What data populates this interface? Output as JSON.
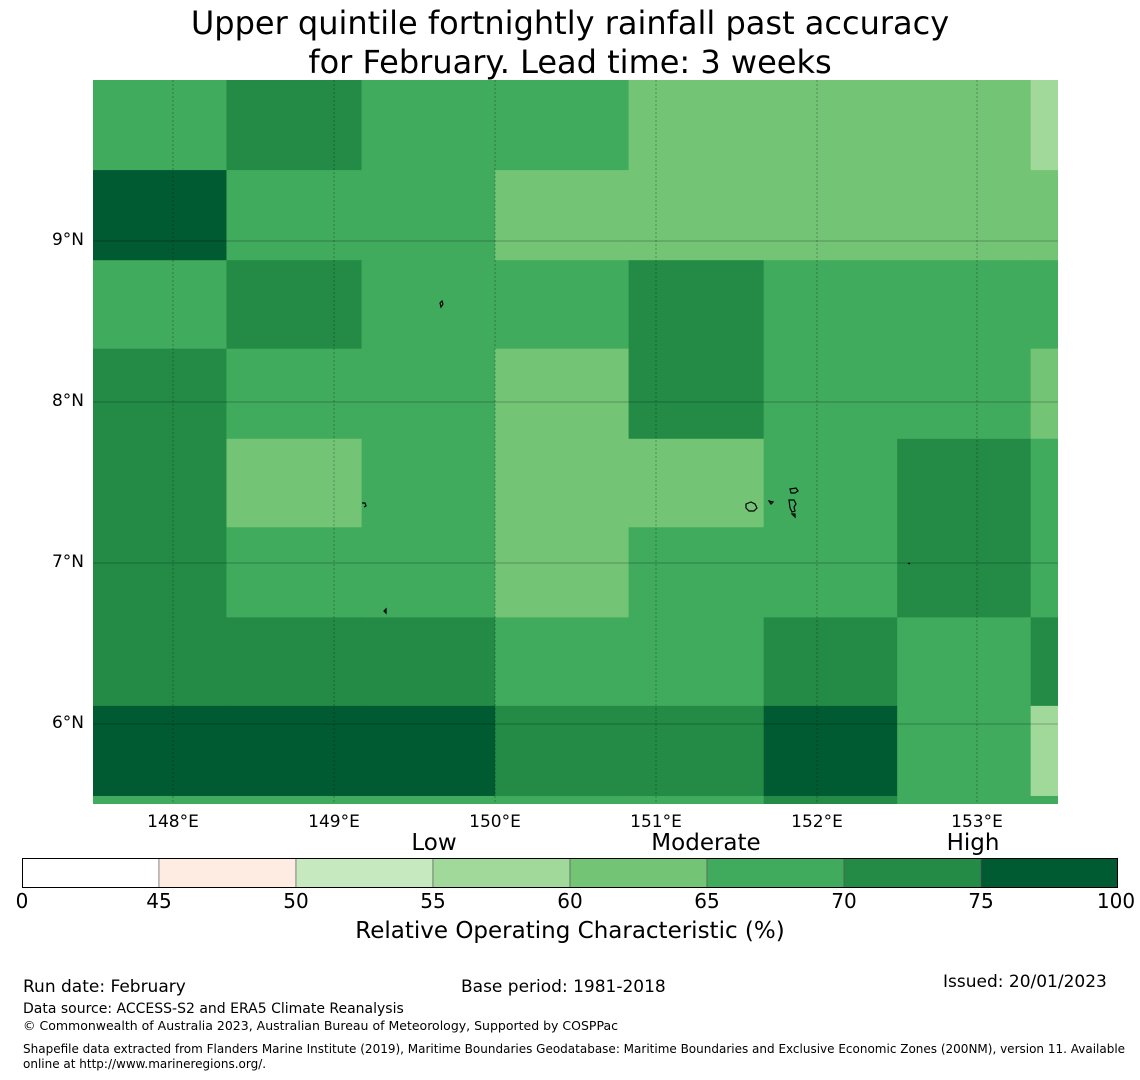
{
  "title": {
    "line1": "Upper quintile fortnightly rainfall past accuracy",
    "line2": "for February. Lead time: 3 weeks"
  },
  "map": {
    "lat_labels": [
      "9°N",
      "8°N",
      "7°N",
      "6°N"
    ],
    "lon_labels": [
      "148°E",
      "149°E",
      "150°E",
      "151°E",
      "152°E",
      "153°E"
    ],
    "lon_range": [
      147.5,
      153.5
    ],
    "lat_range": [
      5.5,
      10.0
    ],
    "cell_size_deg": 0.83,
    "grid": {
      "col_lon_edges": [
        147.5,
        148.33,
        149.17,
        150.0,
        150.83,
        151.67,
        152.5,
        153.33,
        153.5
      ],
      "row_lat_edges": [
        10.0,
        9.44,
        8.88,
        8.33,
        7.77,
        7.22,
        6.66,
        6.11,
        5.55,
        5.5
      ],
      "values": [
        [
          67,
          72,
          67,
          67,
          62,
          62,
          62,
          57
        ],
        [
          77,
          67,
          67,
          62,
          62,
          62,
          62,
          62
        ],
        [
          67,
          72,
          67,
          67,
          72,
          67,
          67,
          67
        ],
        [
          72,
          67,
          67,
          62,
          72,
          67,
          67,
          62
        ],
        [
          72,
          62,
          67,
          62,
          62,
          67,
          72,
          67
        ],
        [
          72,
          67,
          67,
          62,
          67,
          67,
          72,
          67
        ],
        [
          72,
          72,
          72,
          67,
          67,
          72,
          67,
          72
        ],
        [
          77,
          77,
          77,
          72,
          72,
          77,
          67,
          57
        ],
        [
          67,
          67,
          67,
          67,
          67,
          72,
          67,
          67
        ]
      ]
    }
  },
  "colorbar": {
    "ticks": [
      "0",
      "45",
      "50",
      "55",
      "60",
      "65",
      "70",
      "75",
      "100"
    ],
    "bins": [
      {
        "from": 0,
        "to": 45,
        "color": "#ffffff"
      },
      {
        "from": 45,
        "to": 50,
        "color": "#feebe2"
      },
      {
        "from": 50,
        "to": 55,
        "color": "#c7e9c0"
      },
      {
        "from": 55,
        "to": 60,
        "color": "#a1d99b"
      },
      {
        "from": 60,
        "to": 65,
        "color": "#74c476"
      },
      {
        "from": 65,
        "to": 70,
        "color": "#41ab5d"
      },
      {
        "from": 70,
        "to": 75,
        "color": "#238b45"
      },
      {
        "from": 75,
        "to": 100,
        "color": "#005a32"
      }
    ],
    "categories": [
      "Low",
      "Moderate",
      "High"
    ],
    "label": "Relative Operating Characteristic (%)"
  },
  "footer": {
    "run_date": "Run date: February",
    "base_period": "Base period: 1981-2018",
    "issued": "Issued: 20/01/2023",
    "data_source": "Data source: ACCESS-S2 and ERA5 Climate Reanalysis",
    "copyright": "© Commonwealth of Australia 2023, Australian Bureau of Meteorology, Supported by COSPPac",
    "shapefile_note": "Shapefile data extracted from Flanders Marine Institute (2019), Maritime Boundaries Geodatabase: Maritime Boundaries and Exclusive Economic Zones (200NM), version 11. Available online at http://www.marineregions.org/."
  }
}
